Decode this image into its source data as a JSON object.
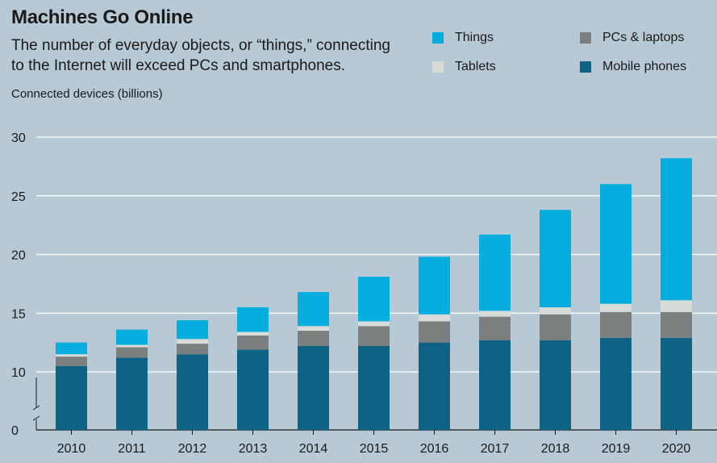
{
  "header": {
    "title": "Machines Go Online",
    "subtitle": "The number of everyday objects, or “things,” connecting to the Internet will exceed PCs and smartphones."
  },
  "chart_data": {
    "type": "bar",
    "stacked": true,
    "title": "Machines Go Online",
    "subtitle": "The number of everyday objects, or “things,” connecting to the Internet will exceed PCs and smartphones.",
    "xlabel": "",
    "ylabel": "Connected devices (billions)",
    "ylim": [
      0,
      30
    ],
    "y_axis_break": true,
    "yticks": [
      0,
      10,
      15,
      20,
      25,
      30
    ],
    "grid": true,
    "legend_position": "top-right",
    "categories": [
      "2010",
      "2011",
      "2012",
      "2013",
      "2014",
      "2015",
      "2016",
      "2017",
      "2018",
      "2019",
      "2020"
    ],
    "series": [
      {
        "name": "Mobile phones",
        "color": "#0e6384",
        "values": [
          10.5,
          11.2,
          11.5,
          11.9,
          12.2,
          12.2,
          12.5,
          12.7,
          12.7,
          12.9,
          12.9
        ]
      },
      {
        "name": "PCs & laptops",
        "color": "#7b7f80",
        "values": [
          0.8,
          0.9,
          0.9,
          1.2,
          1.3,
          1.7,
          1.8,
          2.0,
          2.2,
          2.2,
          2.2
        ]
      },
      {
        "name": "Tablets",
        "color": "#d8dcd8",
        "values": [
          0.2,
          0.2,
          0.4,
          0.3,
          0.4,
          0.4,
          0.6,
          0.5,
          0.6,
          0.7,
          1.0
        ]
      },
      {
        "name": "Things",
        "color": "#06aee0",
        "values": [
          1.0,
          1.3,
          1.6,
          2.1,
          2.9,
          3.8,
          4.9,
          6.5,
          8.3,
          10.2,
          12.1
        ]
      }
    ]
  },
  "legend": [
    {
      "label": "Things",
      "color": "#06aee0"
    },
    {
      "label": "PCs & laptops",
      "color": "#7b7f80"
    },
    {
      "label": "Tablets",
      "color": "#d8dcd8"
    },
    {
      "label": "Mobile phones",
      "color": "#0e6384"
    }
  ]
}
